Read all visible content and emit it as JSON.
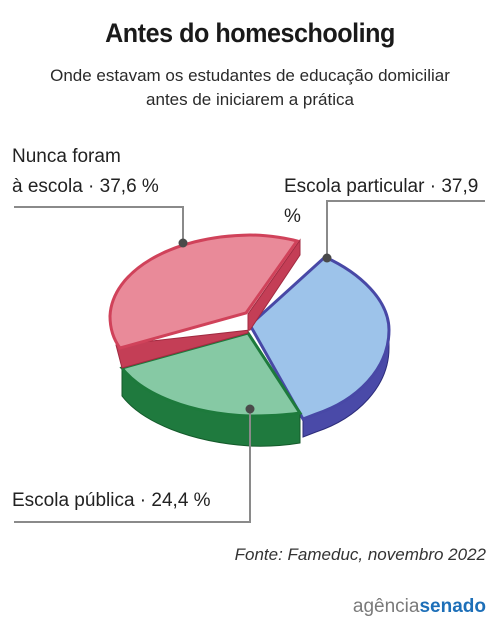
{
  "chart_data": {
    "type": "pie",
    "title": "Antes do homeschooling",
    "subtitle_lines": [
      "Onde estavam os estudantes de educação domiciliar",
      "antes de iniciarem a prática"
    ],
    "categories": [
      "Nunca foram à escola",
      "Escola particular",
      "Escola pública"
    ],
    "values": [
      37.6,
      37.9,
      24.4
    ],
    "labels": [
      {
        "line1": "Nunca foram",
        "line2": "à escola · 37,6 %"
      },
      {
        "line1": "Escola particular · 37,9 %"
      },
      {
        "line1": "Escola pública · 24,4 %"
      }
    ],
    "colors": [
      "#e98a99",
      "#9dc3ea",
      "#86c9a4"
    ],
    "source": "Fonte: Fameduc, novembro 2022"
  },
  "brand": {
    "part1": "agência",
    "part2": "senado"
  }
}
